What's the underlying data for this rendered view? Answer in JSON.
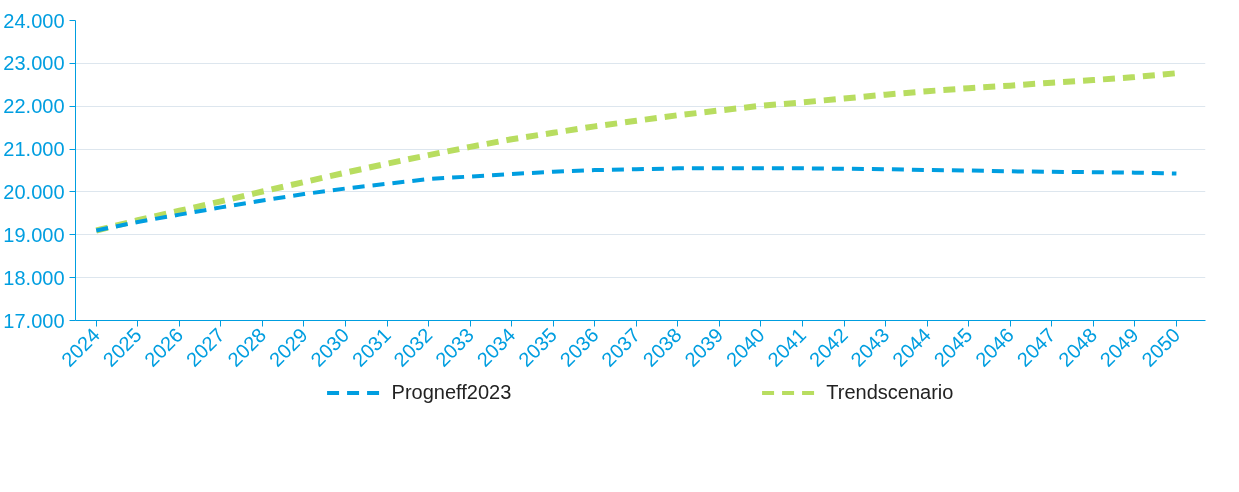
{
  "chart_data": {
    "type": "line",
    "line_style": "dashed",
    "marker": "none",
    "grid": "y",
    "legend": "bottom",
    "categories": [
      "2024",
      "2025",
      "2026",
      "2027",
      "2028",
      "2029",
      "2030",
      "2031",
      "2032",
      "2033",
      "2034",
      "2035",
      "2036",
      "2037",
      "2038",
      "2039",
      "2040",
      "2041",
      "2042",
      "2043",
      "2044",
      "2045",
      "2046",
      "2047",
      "2048",
      "2049",
      "2050"
    ],
    "ylim": [
      17000,
      24000
    ],
    "yticks": [
      {
        "value": 17000,
        "label": "17.000"
      },
      {
        "value": 18000,
        "label": "18.000"
      },
      {
        "value": 19000,
        "label": "19.000"
      },
      {
        "value": 20000,
        "label": "20.000"
      },
      {
        "value": 21000,
        "label": "21.000"
      },
      {
        "value": 22000,
        "label": "22.000"
      },
      {
        "value": 23000,
        "label": "23.000"
      },
      {
        "value": 24000,
        "label": "24.000"
      }
    ],
    "series": [
      {
        "name": "Progneff2023",
        "color": "#009ee0",
        "values": [
          19100,
          19300,
          19470,
          19640,
          19800,
          19950,
          20080,
          20190,
          20300,
          20360,
          20420,
          20470,
          20510,
          20530,
          20550,
          20550,
          20550,
          20550,
          20540,
          20530,
          20510,
          20500,
          20480,
          20470,
          20460,
          20450,
          20430
        ]
      },
      {
        "name": "Trendscenario",
        "color": "#b8dd60",
        "values": [
          19100,
          19340,
          19560,
          19780,
          20010,
          20230,
          20450,
          20660,
          20860,
          21050,
          21230,
          21380,
          21530,
          21660,
          21790,
          21900,
          22010,
          22090,
          22180,
          22270,
          22350,
          22420,
          22480,
          22550,
          22610,
          22680,
          22770
        ]
      }
    ]
  }
}
